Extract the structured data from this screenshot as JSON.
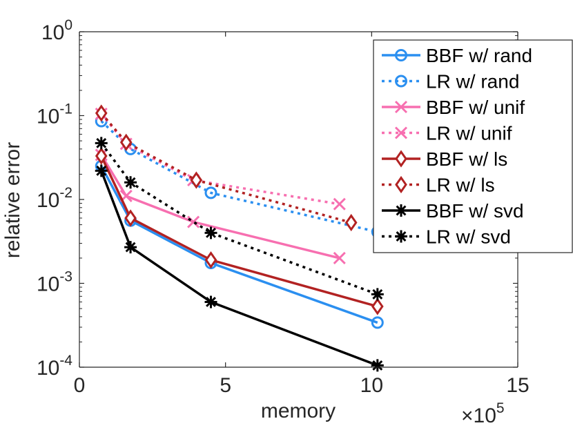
{
  "chart_data": {
    "type": "line",
    "title": "",
    "xlabel": "memory",
    "ylabel": "relative error",
    "x_multiplier_label": "×10",
    "x_multiplier_exponent": "5",
    "xlim": [
      0,
      15
    ],
    "ylim": [
      0.0001,
      1
    ],
    "yscale": "log",
    "x_ticks": [
      {
        "value": 0,
        "label": "0"
      },
      {
        "value": 5,
        "label": "5"
      },
      {
        "value": 10,
        "label": "10"
      },
      {
        "value": 15,
        "label": "15"
      }
    ],
    "y_ticks": [
      {
        "value": 0.0001,
        "base": "10",
        "exp": "-4"
      },
      {
        "value": 0.001,
        "base": "10",
        "exp": "-3"
      },
      {
        "value": 0.01,
        "base": "10",
        "exp": "-2"
      },
      {
        "value": 0.1,
        "base": "10",
        "exp": "-1"
      },
      {
        "value": 1,
        "base": "10",
        "exp": "0"
      }
    ],
    "legend_position": "top-right",
    "series": [
      {
        "name": "BBF w/ rand",
        "color": "#2b8ff0",
        "dash": "solid",
        "marker": "circle",
        "x": [
          0.75,
          1.75,
          4.5,
          10.2
        ],
        "y": [
          0.025,
          0.0056,
          0.00175,
          0.00034
        ]
      },
      {
        "name": "LR w/ rand",
        "color": "#2b8ff0",
        "dash": "dotted",
        "marker": "circle",
        "x": [
          0.75,
          1.75,
          4.5,
          10.2
        ],
        "y": [
          0.086,
          0.04,
          0.012,
          0.0041
        ]
      },
      {
        "name": "BBF w/ unif",
        "color": "#f76fb0",
        "dash": "solid",
        "marker": "x",
        "x": [
          0.75,
          1.6,
          3.9,
          8.9
        ],
        "y": [
          0.034,
          0.011,
          0.0054,
          0.002
        ]
      },
      {
        "name": "LR w/ unif",
        "color": "#f76fb0",
        "dash": "dotted",
        "marker": "x",
        "x": [
          0.75,
          1.6,
          3.9,
          8.9
        ],
        "y": [
          0.105,
          0.046,
          0.017,
          0.0088
        ]
      },
      {
        "name": "BBF w/ ls",
        "color": "#b22222",
        "dash": "solid",
        "marker": "diamond",
        "x": [
          0.75,
          1.75,
          4.5,
          10.2
        ],
        "y": [
          0.033,
          0.006,
          0.0019,
          0.00053
        ]
      },
      {
        "name": "LR w/ ls",
        "color": "#b22222",
        "dash": "dotted",
        "marker": "diamond",
        "x": [
          0.75,
          1.6,
          4.0,
          9.3
        ],
        "y": [
          0.107,
          0.048,
          0.017,
          0.0053
        ]
      },
      {
        "name": "BBF w/ svd",
        "color": "#000000",
        "dash": "solid",
        "marker": "asterisk",
        "x": [
          0.75,
          1.75,
          4.5,
          10.2
        ],
        "y": [
          0.022,
          0.0027,
          0.0006,
          0.000105
        ]
      },
      {
        "name": "LR w/ svd",
        "color": "#000000",
        "dash": "dotted",
        "marker": "asterisk",
        "x": [
          0.75,
          1.75,
          4.5,
          10.2
        ],
        "y": [
          0.047,
          0.016,
          0.004,
          0.00074
        ]
      }
    ]
  }
}
